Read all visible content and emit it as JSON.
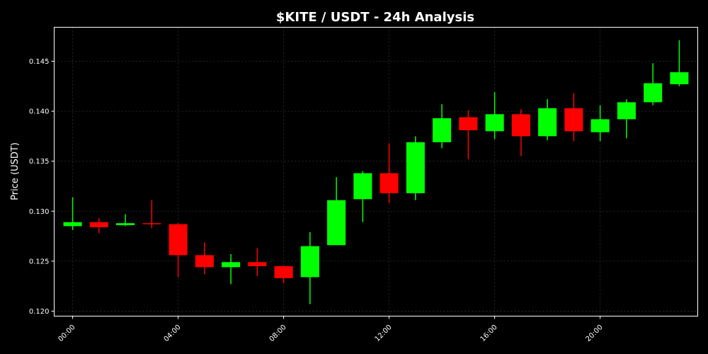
{
  "chart_data": {
    "type": "candlestick",
    "title": "$KITE / USDT - 24h Analysis",
    "xlabel": "",
    "ylabel": "Price (USDT)",
    "xlim": [
      -0.7,
      23.7
    ],
    "ylim": [
      0.1195,
      0.1484
    ],
    "y_ticks": [
      0.12,
      0.125,
      0.13,
      0.135,
      0.14,
      0.145
    ],
    "y_tick_labels": [
      "0.120",
      "0.125",
      "0.130",
      "0.135",
      "0.140",
      "0.145"
    ],
    "x_ticks": [
      0,
      4,
      8,
      12,
      16,
      20
    ],
    "x_tick_labels": [
      "00:00",
      "04:00",
      "08:00",
      "12:00",
      "16:00",
      "20:00"
    ],
    "grid": true,
    "colors": {
      "up": "#00ff00",
      "down": "#ff0000",
      "background": "#000000",
      "grid": "#333333",
      "axes": "#ffffff"
    },
    "candles": [
      {
        "x": 0,
        "open": 0.1285,
        "high": 0.1314,
        "low": 0.1281,
        "close": 0.1289
      },
      {
        "x": 1,
        "open": 0.1289,
        "high": 0.1293,
        "low": 0.1278,
        "close": 0.1284
      },
      {
        "x": 2,
        "open": 0.1286,
        "high": 0.1297,
        "low": 0.1285,
        "close": 0.1288
      },
      {
        "x": 3,
        "open": 0.1288,
        "high": 0.1311,
        "low": 0.1283,
        "close": 0.1287
      },
      {
        "x": 4,
        "open": 0.1287,
        "high": 0.1288,
        "low": 0.1234,
        "close": 0.1256
      },
      {
        "x": 5,
        "open": 0.1256,
        "high": 0.1269,
        "low": 0.1237,
        "close": 0.1244
      },
      {
        "x": 6,
        "open": 0.1244,
        "high": 0.1257,
        "low": 0.1227,
        "close": 0.1249
      },
      {
        "x": 7,
        "open": 0.1249,
        "high": 0.1263,
        "low": 0.1235,
        "close": 0.1245
      },
      {
        "x": 8,
        "open": 0.1245,
        "high": 0.1245,
        "low": 0.1228,
        "close": 0.1233
      },
      {
        "x": 9,
        "open": 0.1234,
        "high": 0.1279,
        "low": 0.1207,
        "close": 0.1265
      },
      {
        "x": 10,
        "open": 0.1266,
        "high": 0.1334,
        "low": 0.1266,
        "close": 0.1311
      },
      {
        "x": 11,
        "open": 0.1312,
        "high": 0.134,
        "low": 0.1289,
        "close": 0.1338
      },
      {
        "x": 12,
        "open": 0.1338,
        "high": 0.1368,
        "low": 0.1308,
        "close": 0.1318
      },
      {
        "x": 13,
        "open": 0.1318,
        "high": 0.1375,
        "low": 0.1311,
        "close": 0.1369
      },
      {
        "x": 14,
        "open": 0.1369,
        "high": 0.1407,
        "low": 0.1363,
        "close": 0.1393
      },
      {
        "x": 15,
        "open": 0.1394,
        "high": 0.1401,
        "low": 0.1352,
        "close": 0.1381
      },
      {
        "x": 16,
        "open": 0.138,
        "high": 0.1419,
        "low": 0.1372,
        "close": 0.1397
      },
      {
        "x": 17,
        "open": 0.1397,
        "high": 0.1402,
        "low": 0.1355,
        "close": 0.1375
      },
      {
        "x": 18,
        "open": 0.1375,
        "high": 0.1412,
        "low": 0.1371,
        "close": 0.1403
      },
      {
        "x": 19,
        "open": 0.1403,
        "high": 0.1418,
        "low": 0.137,
        "close": 0.138
      },
      {
        "x": 20,
        "open": 0.1379,
        "high": 0.1406,
        "low": 0.137,
        "close": 0.1392
      },
      {
        "x": 21,
        "open": 0.1392,
        "high": 0.1412,
        "low": 0.1373,
        "close": 0.1409
      },
      {
        "x": 22,
        "open": 0.1409,
        "high": 0.1448,
        "low": 0.1406,
        "close": 0.1428
      },
      {
        "x": 23,
        "open": 0.1427,
        "high": 0.1471,
        "low": 0.1425,
        "close": 0.1439
      }
    ]
  }
}
